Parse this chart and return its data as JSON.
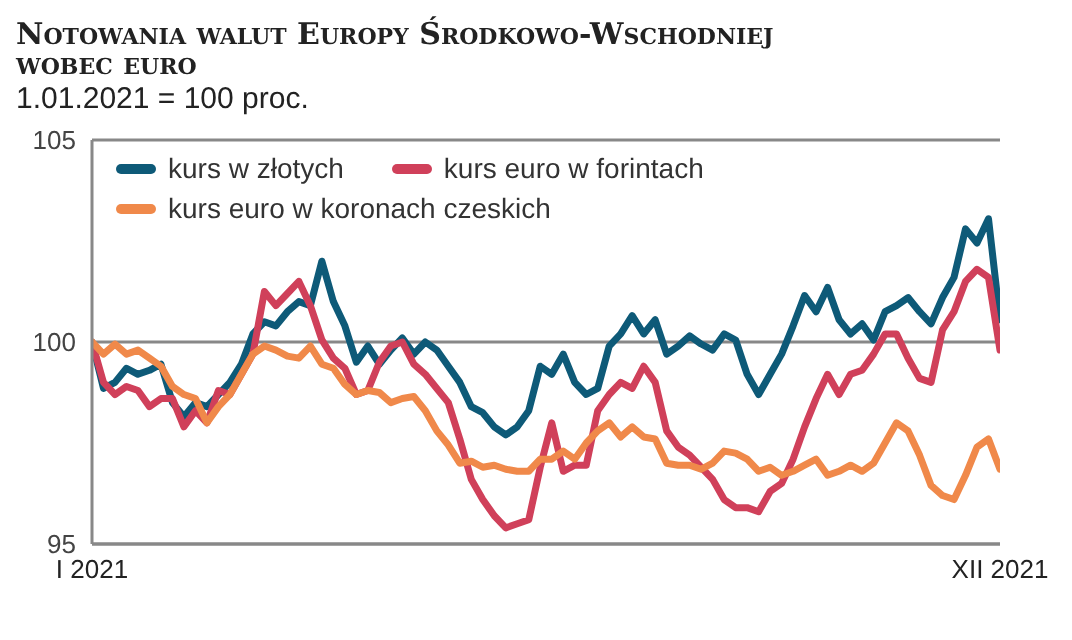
{
  "chart_data": {
    "type": "line",
    "title": "Notowania walut Europy Środkowo-Wschodniej wobec euro",
    "subtitle": "1.01.2021 = 100 proc.",
    "categories": [
      "I 2021",
      null,
      null,
      null,
      null,
      null,
      null,
      null,
      null,
      null,
      null,
      null,
      null,
      null,
      null,
      null,
      null,
      null,
      null,
      null,
      null,
      null,
      null,
      null,
      null,
      null,
      null,
      null,
      null,
      null,
      null,
      null,
      null,
      null,
      null,
      null,
      null,
      null,
      null,
      null,
      null,
      null,
      null,
      null,
      null,
      null,
      null,
      null,
      null,
      null,
      null,
      null,
      null,
      null,
      null,
      null,
      null,
      null,
      null,
      null,
      null,
      null,
      null,
      null,
      null,
      null,
      null,
      null,
      null,
      null,
      null,
      null,
      null,
      null,
      null,
      null,
      null,
      null,
      null,
      "XII 2021"
    ],
    "series": [
      {
        "name": "kurs w złotych",
        "color": "#0e5a78",
        "values": [
          100,
          98.85,
          99.0,
          99.35,
          99.2,
          99.3,
          99.45,
          98.5,
          98.15,
          98.5,
          98.4,
          98.7,
          99.0,
          99.45,
          100.2,
          100.5,
          100.4,
          100.75,
          101.0,
          100.9,
          102.0,
          101.0,
          100.4,
          99.5,
          99.9,
          99.45,
          99.8,
          100.1,
          99.7,
          100.0,
          99.8,
          99.4,
          99.0,
          98.4,
          98.25,
          97.9,
          97.7,
          97.9,
          98.3,
          99.4,
          99.2,
          99.7,
          99.0,
          98.7,
          98.85,
          99.9,
          100.2,
          100.65,
          100.2,
          100.55,
          99.7,
          99.9,
          100.15,
          99.95,
          99.8,
          100.2,
          100.05,
          99.2,
          98.7,
          99.2,
          99.7,
          100.4,
          101.15,
          100.75,
          101.35,
          100.55,
          100.2,
          100.45,
          100.05,
          100.75,
          100.9,
          101.1,
          100.75,
          100.45,
          101.1,
          101.6,
          102.8,
          102.45,
          103.05,
          100.55
        ]
      },
      {
        "name": "kurs euro w forintach",
        "color": "#d0405a",
        "values": [
          100,
          99.0,
          98.7,
          98.9,
          98.8,
          98.4,
          98.6,
          98.6,
          97.9,
          98.3,
          98.0,
          98.8,
          98.7,
          99.2,
          99.7,
          101.25,
          100.9,
          101.2,
          101.5,
          100.9,
          100.05,
          99.6,
          99.35,
          98.7,
          98.8,
          99.5,
          99.9,
          100.0,
          99.45,
          99.2,
          98.85,
          98.5,
          97.6,
          96.6,
          96.1,
          95.7,
          95.4,
          95.5,
          95.6,
          96.9,
          98.0,
          96.8,
          96.95,
          96.95,
          98.3,
          98.7,
          99.0,
          98.85,
          99.4,
          99.0,
          97.8,
          97.4,
          97.2,
          96.9,
          96.6,
          96.1,
          95.9,
          95.9,
          95.8,
          96.3,
          96.5,
          97.1,
          97.9,
          98.6,
          99.2,
          98.7,
          99.2,
          99.3,
          99.7,
          100.2,
          100.2,
          99.6,
          99.1,
          99.0,
          100.3,
          100.75,
          101.5,
          101.8,
          101.6,
          99.8
        ]
      },
      {
        "name": "kurs euro w koronach czeskich",
        "color": "#f0894a",
        "values": [
          100,
          99.7,
          99.95,
          99.7,
          99.8,
          99.6,
          99.4,
          98.9,
          98.7,
          98.6,
          98.0,
          98.4,
          98.7,
          99.2,
          99.7,
          99.9,
          99.8,
          99.65,
          99.6,
          99.9,
          99.45,
          99.35,
          98.95,
          98.7,
          98.8,
          98.75,
          98.5,
          98.6,
          98.65,
          98.3,
          97.8,
          97.45,
          97.0,
          97.05,
          96.9,
          96.95,
          96.85,
          96.8,
          96.8,
          97.1,
          97.1,
          97.3,
          97.1,
          97.5,
          97.8,
          98.0,
          97.65,
          97.9,
          97.65,
          97.6,
          97.0,
          96.95,
          96.95,
          96.85,
          97.0,
          97.3,
          97.25,
          97.1,
          96.8,
          96.9,
          96.7,
          96.8,
          96.95,
          97.1,
          96.7,
          96.8,
          96.95,
          96.8,
          97.0,
          97.5,
          98.0,
          97.8,
          97.2,
          96.45,
          96.2,
          96.1,
          96.7,
          97.4,
          97.6,
          96.85
        ]
      }
    ],
    "ylim": [
      95,
      105
    ],
    "yticks": [
      95,
      100,
      105
    ],
    "grid": "y",
    "legend": "top left",
    "marker": "none",
    "line_style": "solid"
  }
}
